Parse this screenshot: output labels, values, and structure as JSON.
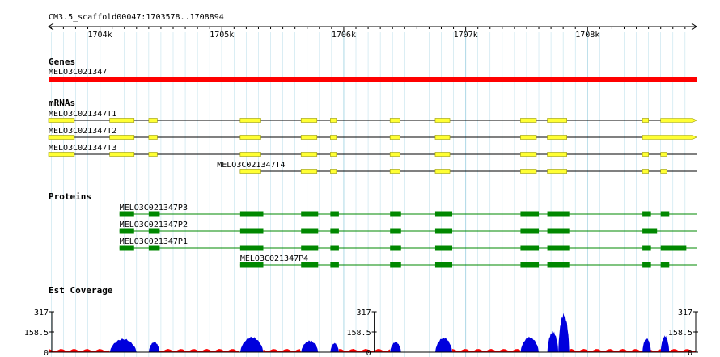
{
  "browser": {
    "region_label": "CM3.5_scaffold00047:1703578..1708894",
    "start": 1703578,
    "end": 1708894,
    "ruler_ticks": [
      {
        "pos": 1704000,
        "label": "1704k"
      },
      {
        "pos": 1705000,
        "label": "1705k"
      },
      {
        "pos": 1706000,
        "label": "1706k"
      },
      {
        "pos": 1707000,
        "label": "1707k"
      },
      {
        "pos": 1708000,
        "label": "1708k"
      }
    ]
  },
  "colors": {
    "gene": "#ff0000",
    "mrna_fill": "#ffff33",
    "mrna_stroke": "#999900",
    "protein": "#008800",
    "coverage": "#0000dd",
    "coverage_low": "#ff0000",
    "grid": "#add8e6"
  },
  "tracks": {
    "genes": {
      "title": "Genes",
      "features": [
        {
          "name": "MELO3C021347",
          "start": 1703578,
          "end": 1708894
        }
      ]
    },
    "mrnas": {
      "title": "mRNAs",
      "features": [
        {
          "name": "MELO3C021347T1",
          "label_start": 1703578,
          "start": 1703578,
          "end": 1708894,
          "exons": [
            [
              1703578,
              1703790
            ],
            [
              1704080,
              1704280
            ],
            [
              1704400,
              1704470
            ],
            [
              1705150,
              1705320
            ],
            [
              1705650,
              1705780
            ],
            [
              1705890,
              1705940
            ],
            [
              1706380,
              1706460
            ],
            [
              1706750,
              1706870
            ],
            [
              1707450,
              1707580
            ],
            [
              1707670,
              1707830
            ],
            [
              1708450,
              1708500
            ],
            [
              1708600,
              1708894
            ]
          ]
        },
        {
          "name": "MELO3C021347T2",
          "label_start": 1703578,
          "start": 1703578,
          "end": 1708894,
          "exons": [
            [
              1703578,
              1703790
            ],
            [
              1704080,
              1704280
            ],
            [
              1704400,
              1704470
            ],
            [
              1705150,
              1705320
            ],
            [
              1705650,
              1705780
            ],
            [
              1705890,
              1705940
            ],
            [
              1706380,
              1706460
            ],
            [
              1706750,
              1706870
            ],
            [
              1707450,
              1707580
            ],
            [
              1707670,
              1707830
            ],
            [
              1708450,
              1708894
            ]
          ]
        },
        {
          "name": "MELO3C021347T3",
          "label_start": 1703578,
          "start": 1703578,
          "end": 1708894,
          "exons": [
            [
              1703578,
              1703790
            ],
            [
              1704080,
              1704280
            ],
            [
              1704400,
              1704470
            ],
            [
              1705150,
              1705320
            ],
            [
              1705650,
              1705780
            ],
            [
              1705890,
              1705940
            ],
            [
              1706380,
              1706460
            ],
            [
              1706750,
              1706870
            ],
            [
              1707450,
              1707580
            ],
            [
              1707670,
              1707830
            ],
            [
              1708450,
              1708500
            ],
            [
              1708600,
              1708650
            ]
          ]
        },
        {
          "name": "MELO3C021347T4",
          "label_start": 1704960,
          "start": 1705150,
          "end": 1708894,
          "exons": [
            [
              1705150,
              1705320
            ],
            [
              1705650,
              1705780
            ],
            [
              1705890,
              1705940
            ],
            [
              1706380,
              1706460
            ],
            [
              1706750,
              1706870
            ],
            [
              1707450,
              1707580
            ],
            [
              1707670,
              1707830
            ],
            [
              1708450,
              1708500
            ],
            [
              1708600,
              1708650
            ]
          ]
        }
      ]
    },
    "proteins": {
      "title": "Proteins",
      "features": [
        {
          "name": "MELO3C021347P3",
          "label_start": 1704160,
          "start": 1704160,
          "end": 1708894,
          "exons": [
            [
              1704160,
              1704280
            ],
            [
              1704400,
              1704490
            ],
            [
              1705150,
              1705340
            ],
            [
              1705650,
              1705790
            ],
            [
              1705890,
              1705960
            ],
            [
              1706380,
              1706470
            ],
            [
              1706750,
              1706890
            ],
            [
              1707450,
              1707600
            ],
            [
              1707670,
              1707850
            ],
            [
              1708450,
              1708520
            ],
            [
              1708600,
              1708670
            ]
          ]
        },
        {
          "name": "MELO3C021347P2",
          "label_start": 1704160,
          "start": 1704160,
          "end": 1708894,
          "exons": [
            [
              1704160,
              1704280
            ],
            [
              1704400,
              1704490
            ],
            [
              1705150,
              1705340
            ],
            [
              1705650,
              1705790
            ],
            [
              1705890,
              1705960
            ],
            [
              1706380,
              1706470
            ],
            [
              1706750,
              1706890
            ],
            [
              1707450,
              1707600
            ],
            [
              1707670,
              1707850
            ],
            [
              1708450,
              1708570
            ]
          ]
        },
        {
          "name": "MELO3C021347P1",
          "label_start": 1704160,
          "start": 1704160,
          "end": 1708894,
          "exons": [
            [
              1704160,
              1704280
            ],
            [
              1704400,
              1704490
            ],
            [
              1705150,
              1705340
            ],
            [
              1705650,
              1705790
            ],
            [
              1705890,
              1705960
            ],
            [
              1706380,
              1706470
            ],
            [
              1706750,
              1706890
            ],
            [
              1707450,
              1707600
            ],
            [
              1707670,
              1707850
            ],
            [
              1708450,
              1708520
            ],
            [
              1708600,
              1708810
            ]
          ]
        },
        {
          "name": "MELO3C021347P4",
          "label_start": 1705150,
          "start": 1705150,
          "end": 1708894,
          "exons": [
            [
              1705150,
              1705340
            ],
            [
              1705650,
              1705790
            ],
            [
              1705890,
              1705960
            ],
            [
              1706380,
              1706470
            ],
            [
              1706750,
              1706890
            ],
            [
              1707450,
              1707600
            ],
            [
              1707670,
              1707850
            ],
            [
              1708450,
              1708520
            ],
            [
              1708600,
              1708670
            ]
          ]
        }
      ]
    },
    "coverage": {
      "title": "Est Coverage",
      "y_ticks": [
        "317",
        "158.5",
        "0"
      ],
      "y_max": 317,
      "scale_positions": [
        1703578,
        1706250,
        1708894
      ],
      "low_segments": [
        [
          1703578,
          1704080
        ],
        [
          1704400,
          1705150
        ],
        [
          1705340,
          1705650
        ],
        [
          1705960,
          1706380
        ],
        [
          1706890,
          1707450
        ],
        [
          1707850,
          1708894
        ]
      ],
      "peaks": [
        {
          "start": 1704080,
          "end": 1704300,
          "height": 110
        },
        {
          "start": 1704400,
          "end": 1704490,
          "height": 85
        },
        {
          "start": 1705150,
          "end": 1705340,
          "height": 125
        },
        {
          "start": 1705650,
          "end": 1705790,
          "height": 95
        },
        {
          "start": 1705890,
          "end": 1705960,
          "height": 75
        },
        {
          "start": 1706380,
          "end": 1706470,
          "height": 85
        },
        {
          "start": 1706750,
          "end": 1706890,
          "height": 120
        },
        {
          "start": 1707450,
          "end": 1707600,
          "height": 125
        },
        {
          "start": 1707670,
          "end": 1707760,
          "height": 170
        },
        {
          "start": 1707760,
          "end": 1707850,
          "height": 317
        },
        {
          "start": 1708450,
          "end": 1708520,
          "height": 115
        },
        {
          "start": 1708600,
          "end": 1708670,
          "height": 135
        }
      ]
    }
  }
}
